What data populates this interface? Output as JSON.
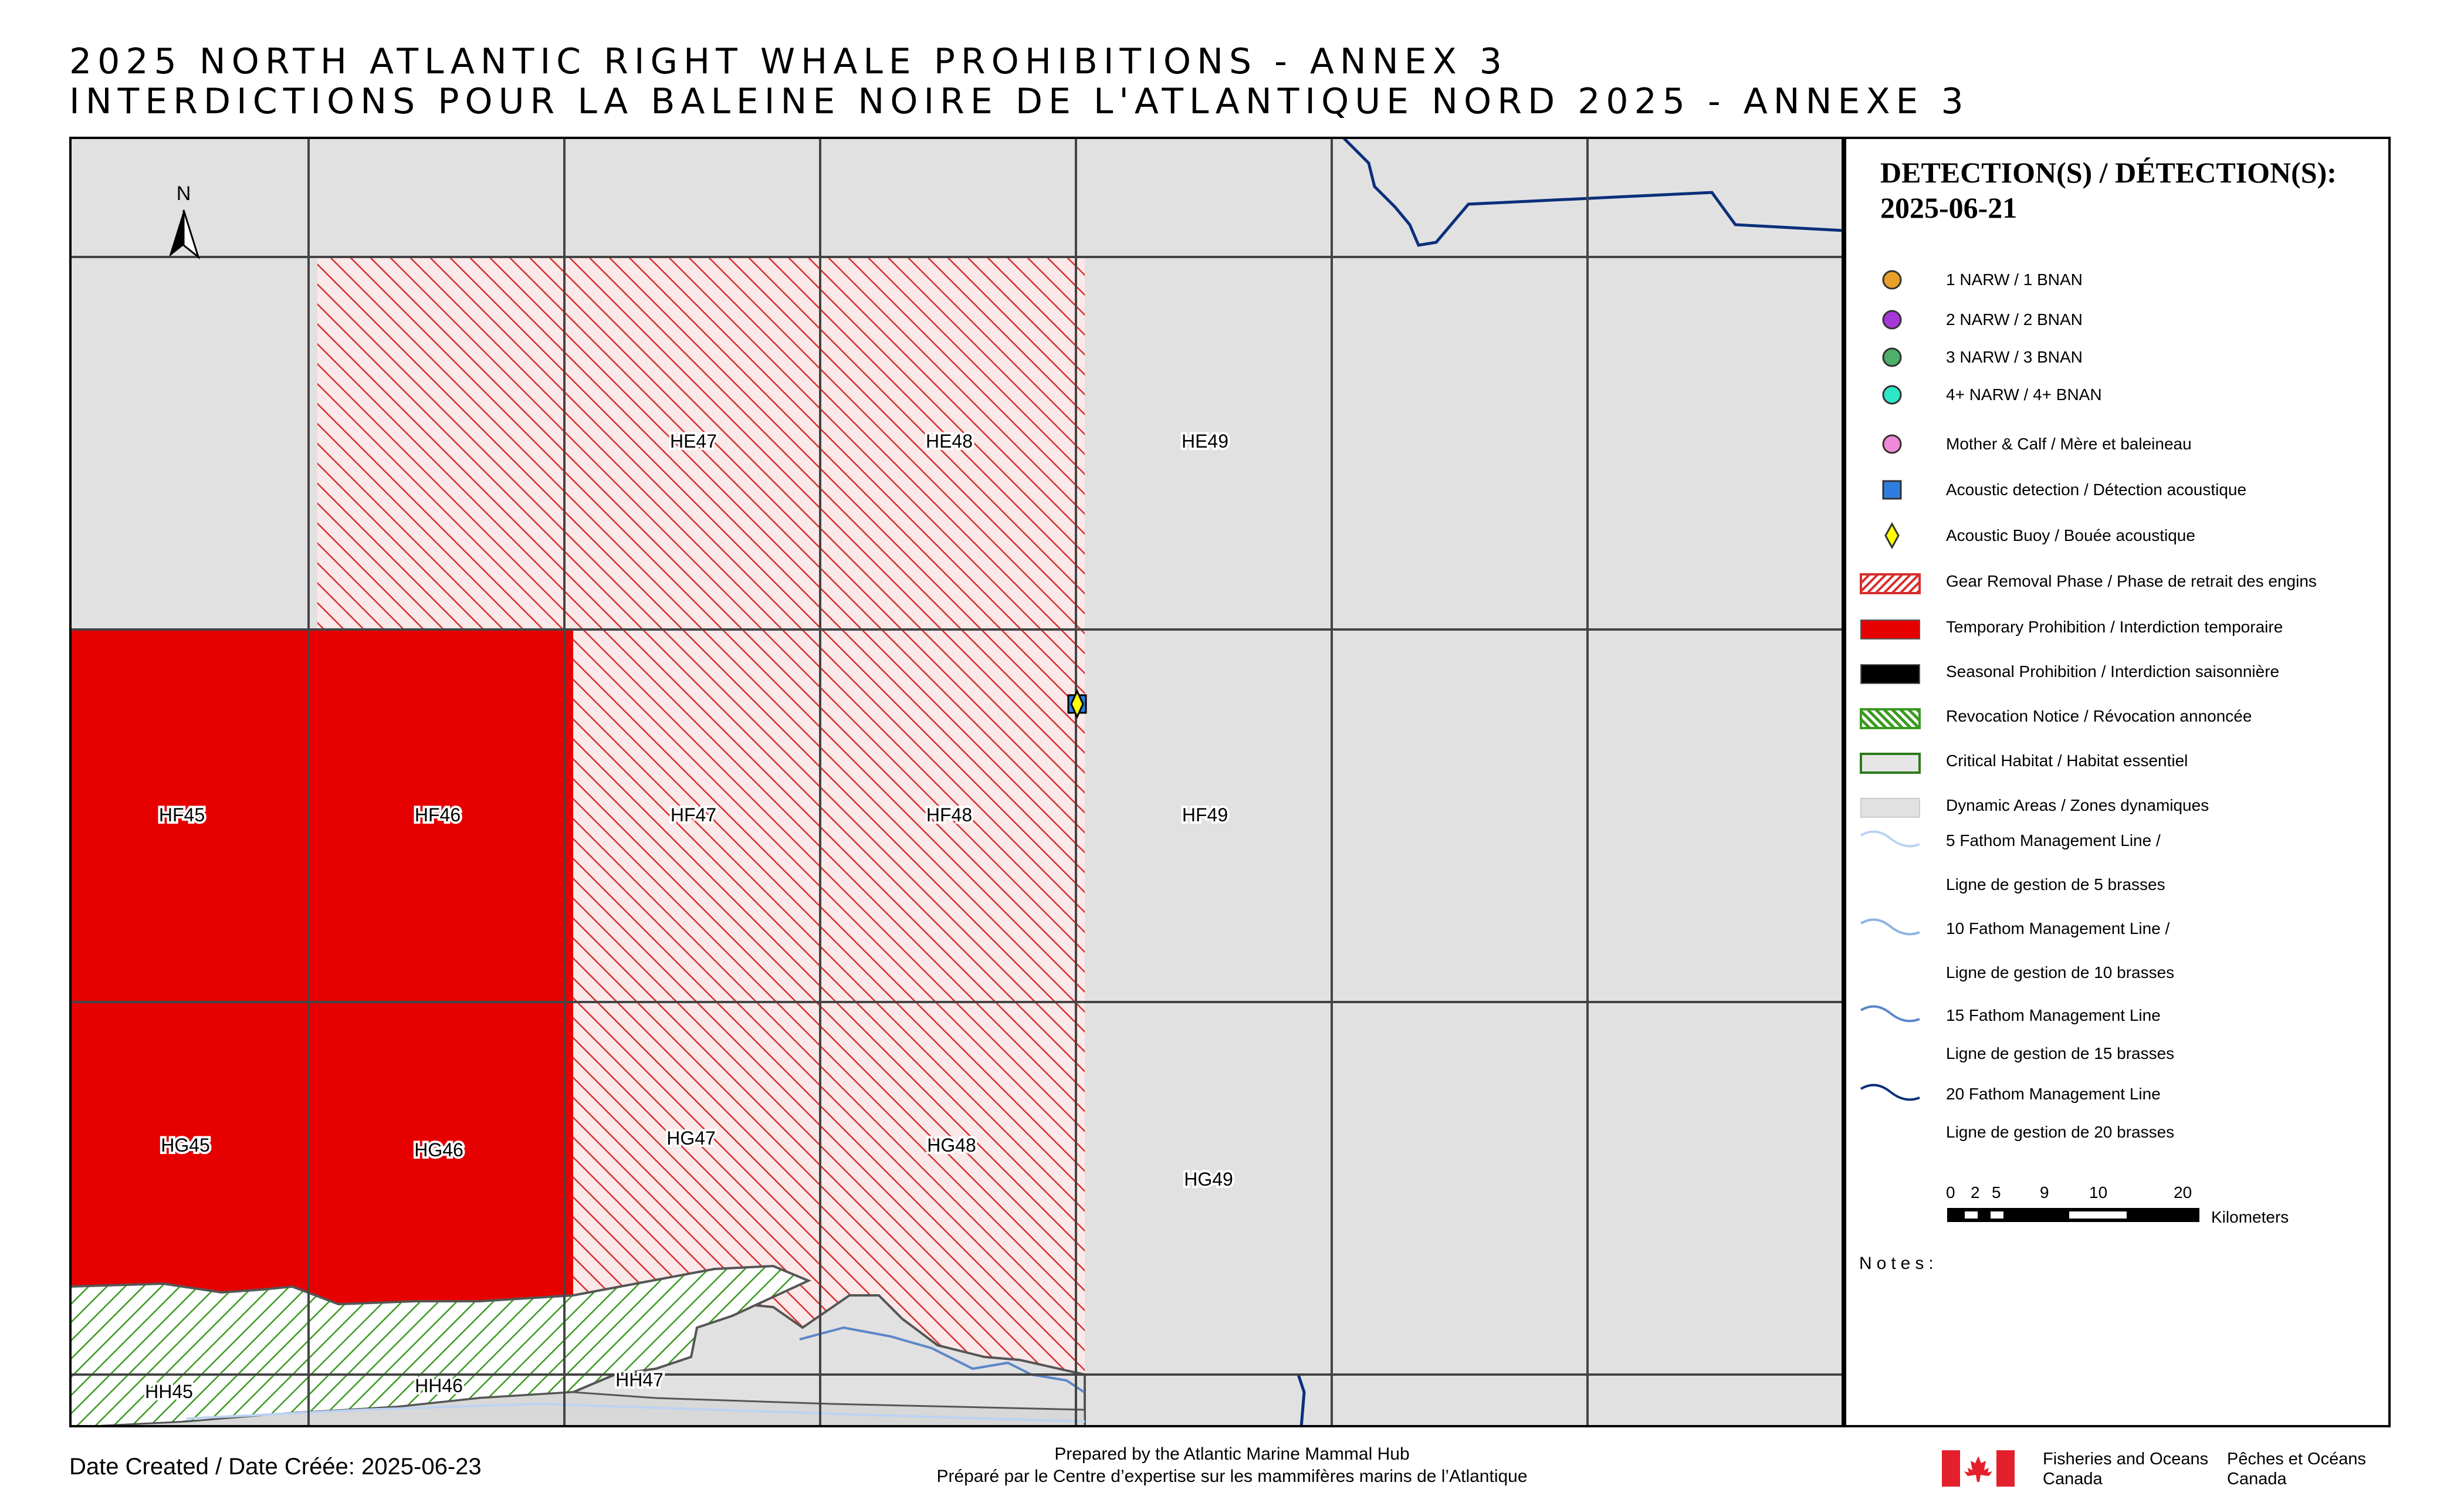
{
  "title": {
    "line1": "2025 NORTH ATLANTIC RIGHT WHALE PROHIBITIONS - ANNEX 3",
    "line2": "INTERDICTIONS POUR LA BALEINE NOIRE DE L'ATLANTIQUE NORD 2025 - ANNEXE 3"
  },
  "map": {
    "north_label": "N",
    "cells": {
      "HE47": "HE47",
      "HE48": "HE48",
      "HE49": "HE49",
      "HF45": "HF45",
      "HF46": "HF46",
      "HF47": "HF47",
      "HF48": "HF48",
      "HF49": "HF49",
      "HG45": "HG45",
      "HG46": "HG46",
      "HG47": "HG47",
      "HG48": "HG48",
      "HG49": "HG49",
      "HH45": "HH45",
      "HH46": "HH46",
      "HH47": "HH47"
    },
    "colors": {
      "temporary_prohibition": "#e60000",
      "gear_removal_hatch": "#d62f2f",
      "revocation_hatch": "#3a9a1f",
      "dynamic_area": "#e1e1e1",
      "fathom_20": "#0b2f7a",
      "fathom_15": "#5b86c9",
      "fathom_5": "#bcd3f2"
    }
  },
  "legend": {
    "heading1": "DETECTION(S) / DÉTECTION(S):",
    "heading2": "2025-06-21",
    "items": [
      {
        "label": "1 NARW / 1 BNAN",
        "icon": "circle-icon",
        "color": "#e8a02a"
      },
      {
        "label": "2 NARW / 2 BNAN",
        "icon": "circle-icon",
        "color": "#a637d8"
      },
      {
        "label": "3 NARW / 3 BNAN",
        "icon": "circle-icon",
        "color": "#4caf6a"
      },
      {
        "label": "4+ NARW / 4+ BNAN",
        "icon": "circle-icon",
        "color": "#2ee6c8"
      },
      {
        "label": "Mother & Calf / Mère et baleineau",
        "icon": "circle-icon",
        "color": "#f08ad8"
      },
      {
        "label": "Acoustic detection / Détection acoustique",
        "icon": "square-icon",
        "color": "#2f7de0"
      },
      {
        "label": "Acoustic Buoy / Bouée acoustique",
        "icon": "diamond-icon",
        "color": "#ffff00"
      },
      {
        "label": "Gear Removal Phase / Phase de retrait des engins",
        "icon": "red-hatch-swatch",
        "color": "#d62f2f"
      },
      {
        "label": "Temporary Prohibition / Interdiction temporaire",
        "icon": "red-swatch",
        "color": "#e60000"
      },
      {
        "label": "Seasonal Prohibition / Interdiction saisonnière",
        "icon": "black-swatch",
        "color": "#000000"
      },
      {
        "label": "Revocation Notice / Révocation annoncée",
        "icon": "green-hatch-swatch",
        "color": "#3a9a1f"
      },
      {
        "label": "Critical Habitat / Habitat essentiel",
        "icon": "green-outline-swatch",
        "color": "#2c7a1a"
      },
      {
        "label": "Dynamic Areas / Zones dynamiques",
        "icon": "grey-swatch",
        "color": "#e1e1e1"
      }
    ],
    "lines": [
      {
        "label1": "5 Fathom Management Line /",
        "label2": "Ligne de gestion de 5 brasses",
        "color": "#bcd3f2"
      },
      {
        "label1": "10 Fathom Management Line /",
        "label2": "Ligne de gestion de 10 brasses",
        "color": "#8fb3e0"
      },
      {
        "label1": "15 Fathom Management Line",
        "label2": "Ligne de gestion de 15 brasses",
        "color": "#5b86c9"
      },
      {
        "label1": "20 Fathom Management Line",
        "label2": "Ligne de gestion de 20 brasses",
        "color": "#0b2f7a"
      }
    ],
    "scale": {
      "ticks": [
        "0",
        "2",
        "5",
        "9",
        "10",
        "20"
      ],
      "unit": "Kilometers"
    },
    "notes": "Notes:"
  },
  "footer": {
    "date_created": "Date Created / Date Créée: 2025-06-23",
    "prepared_en": "Prepared by the Atlantic Marine Mammal Hub",
    "prepared_fr": "Préparé par le Centre d’expertise sur les mammifères marins de l’Atlantique",
    "dfo_en1": "Fisheries and Oceans",
    "dfo_en2": "Canada",
    "dfo_fr1": "Pêches et Océans",
    "dfo_fr2": "Canada"
  }
}
